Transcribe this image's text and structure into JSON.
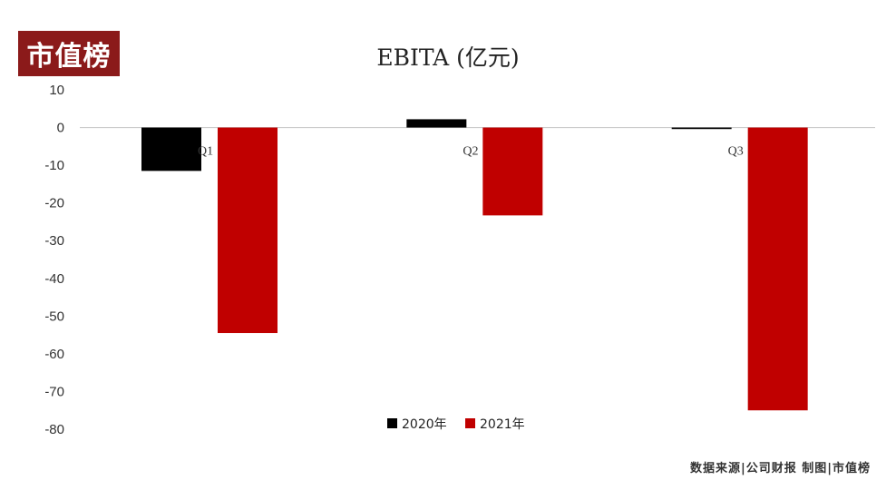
{
  "brand": {
    "logo_text": "市值榜"
  },
  "chart_data": {
    "type": "bar",
    "title": "EBITA (亿元)",
    "xlabel": "",
    "ylabel": "",
    "categories": [
      "Q1",
      "Q2",
      "Q3"
    ],
    "series": [
      {
        "name": "2020年",
        "values": [
          -11.5,
          2.2,
          -0.4
        ]
      },
      {
        "name": "2021年",
        "values": [
          -54.5,
          -23.3,
          -75.0
        ]
      }
    ],
    "ylim": [
      -80,
      10
    ],
    "yticks": [
      10,
      0,
      -10,
      -20,
      -30,
      -40,
      -50,
      -60,
      -70,
      -80
    ],
    "grid": false,
    "legend_position": "bottom-center",
    "colors": [
      "#000000",
      "#c00000"
    ]
  },
  "footer": {
    "source_text": "数据来源|公司财报  制图|市值榜"
  }
}
